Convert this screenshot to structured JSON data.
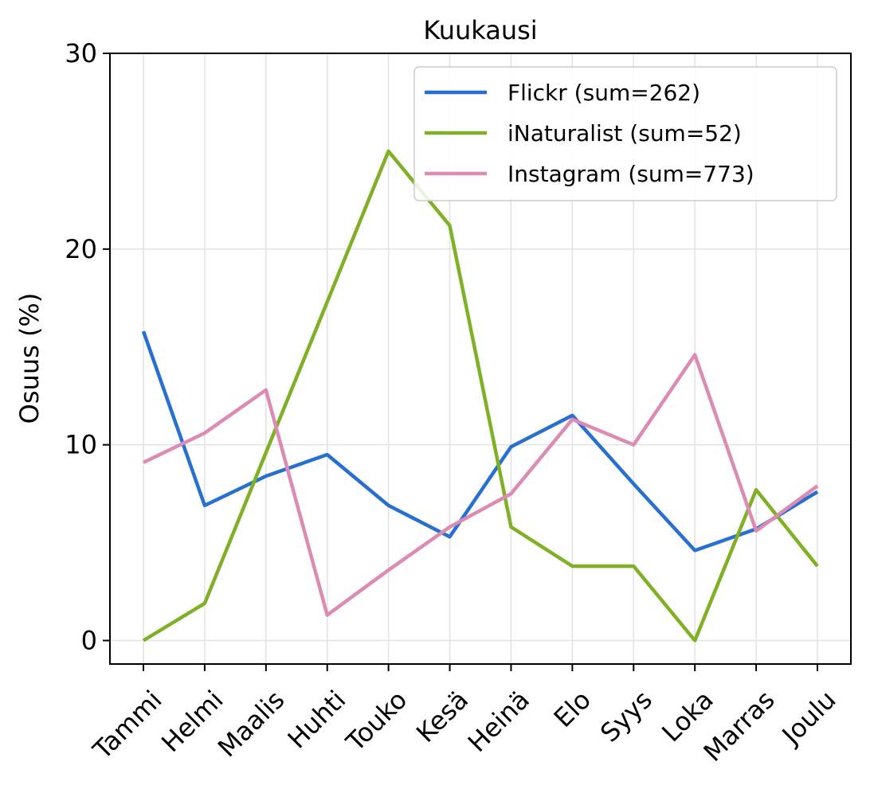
{
  "chart_data": {
    "type": "line",
    "title": "Kuukausi",
    "xlabel": "",
    "ylabel": "Osuus (%)",
    "categories": [
      "Tammi",
      "Helmi",
      "Maalis",
      "Huhti",
      "Touko",
      "Kesä",
      "Heinä",
      "Elo",
      "Syys",
      "Loka",
      "Marras",
      "Joulu"
    ],
    "ylim": [
      -1.2,
      30
    ],
    "yticks": [
      0,
      10,
      20,
      30
    ],
    "grid": true,
    "legend_position": "top-right",
    "series": [
      {
        "name": "Flickr (sum=262)",
        "color": "#2870d0",
        "values": [
          15.8,
          6.9,
          8.4,
          9.5,
          6.9,
          5.3,
          9.9,
          11.5,
          8.0,
          4.6,
          5.7,
          7.6
        ]
      },
      {
        "name": "iNaturalist (sum=52)",
        "color": "#7fb026",
        "values": [
          0.0,
          1.9,
          9.6,
          17.3,
          25.0,
          21.2,
          5.8,
          3.8,
          3.8,
          0.0,
          7.7,
          3.8
        ]
      },
      {
        "name": "Instagram (sum=773)",
        "color": "#dc8cb4",
        "values": [
          9.1,
          10.6,
          12.8,
          1.3,
          3.6,
          5.8,
          7.5,
          11.3,
          10.0,
          14.6,
          5.6,
          7.9
        ]
      }
    ]
  }
}
